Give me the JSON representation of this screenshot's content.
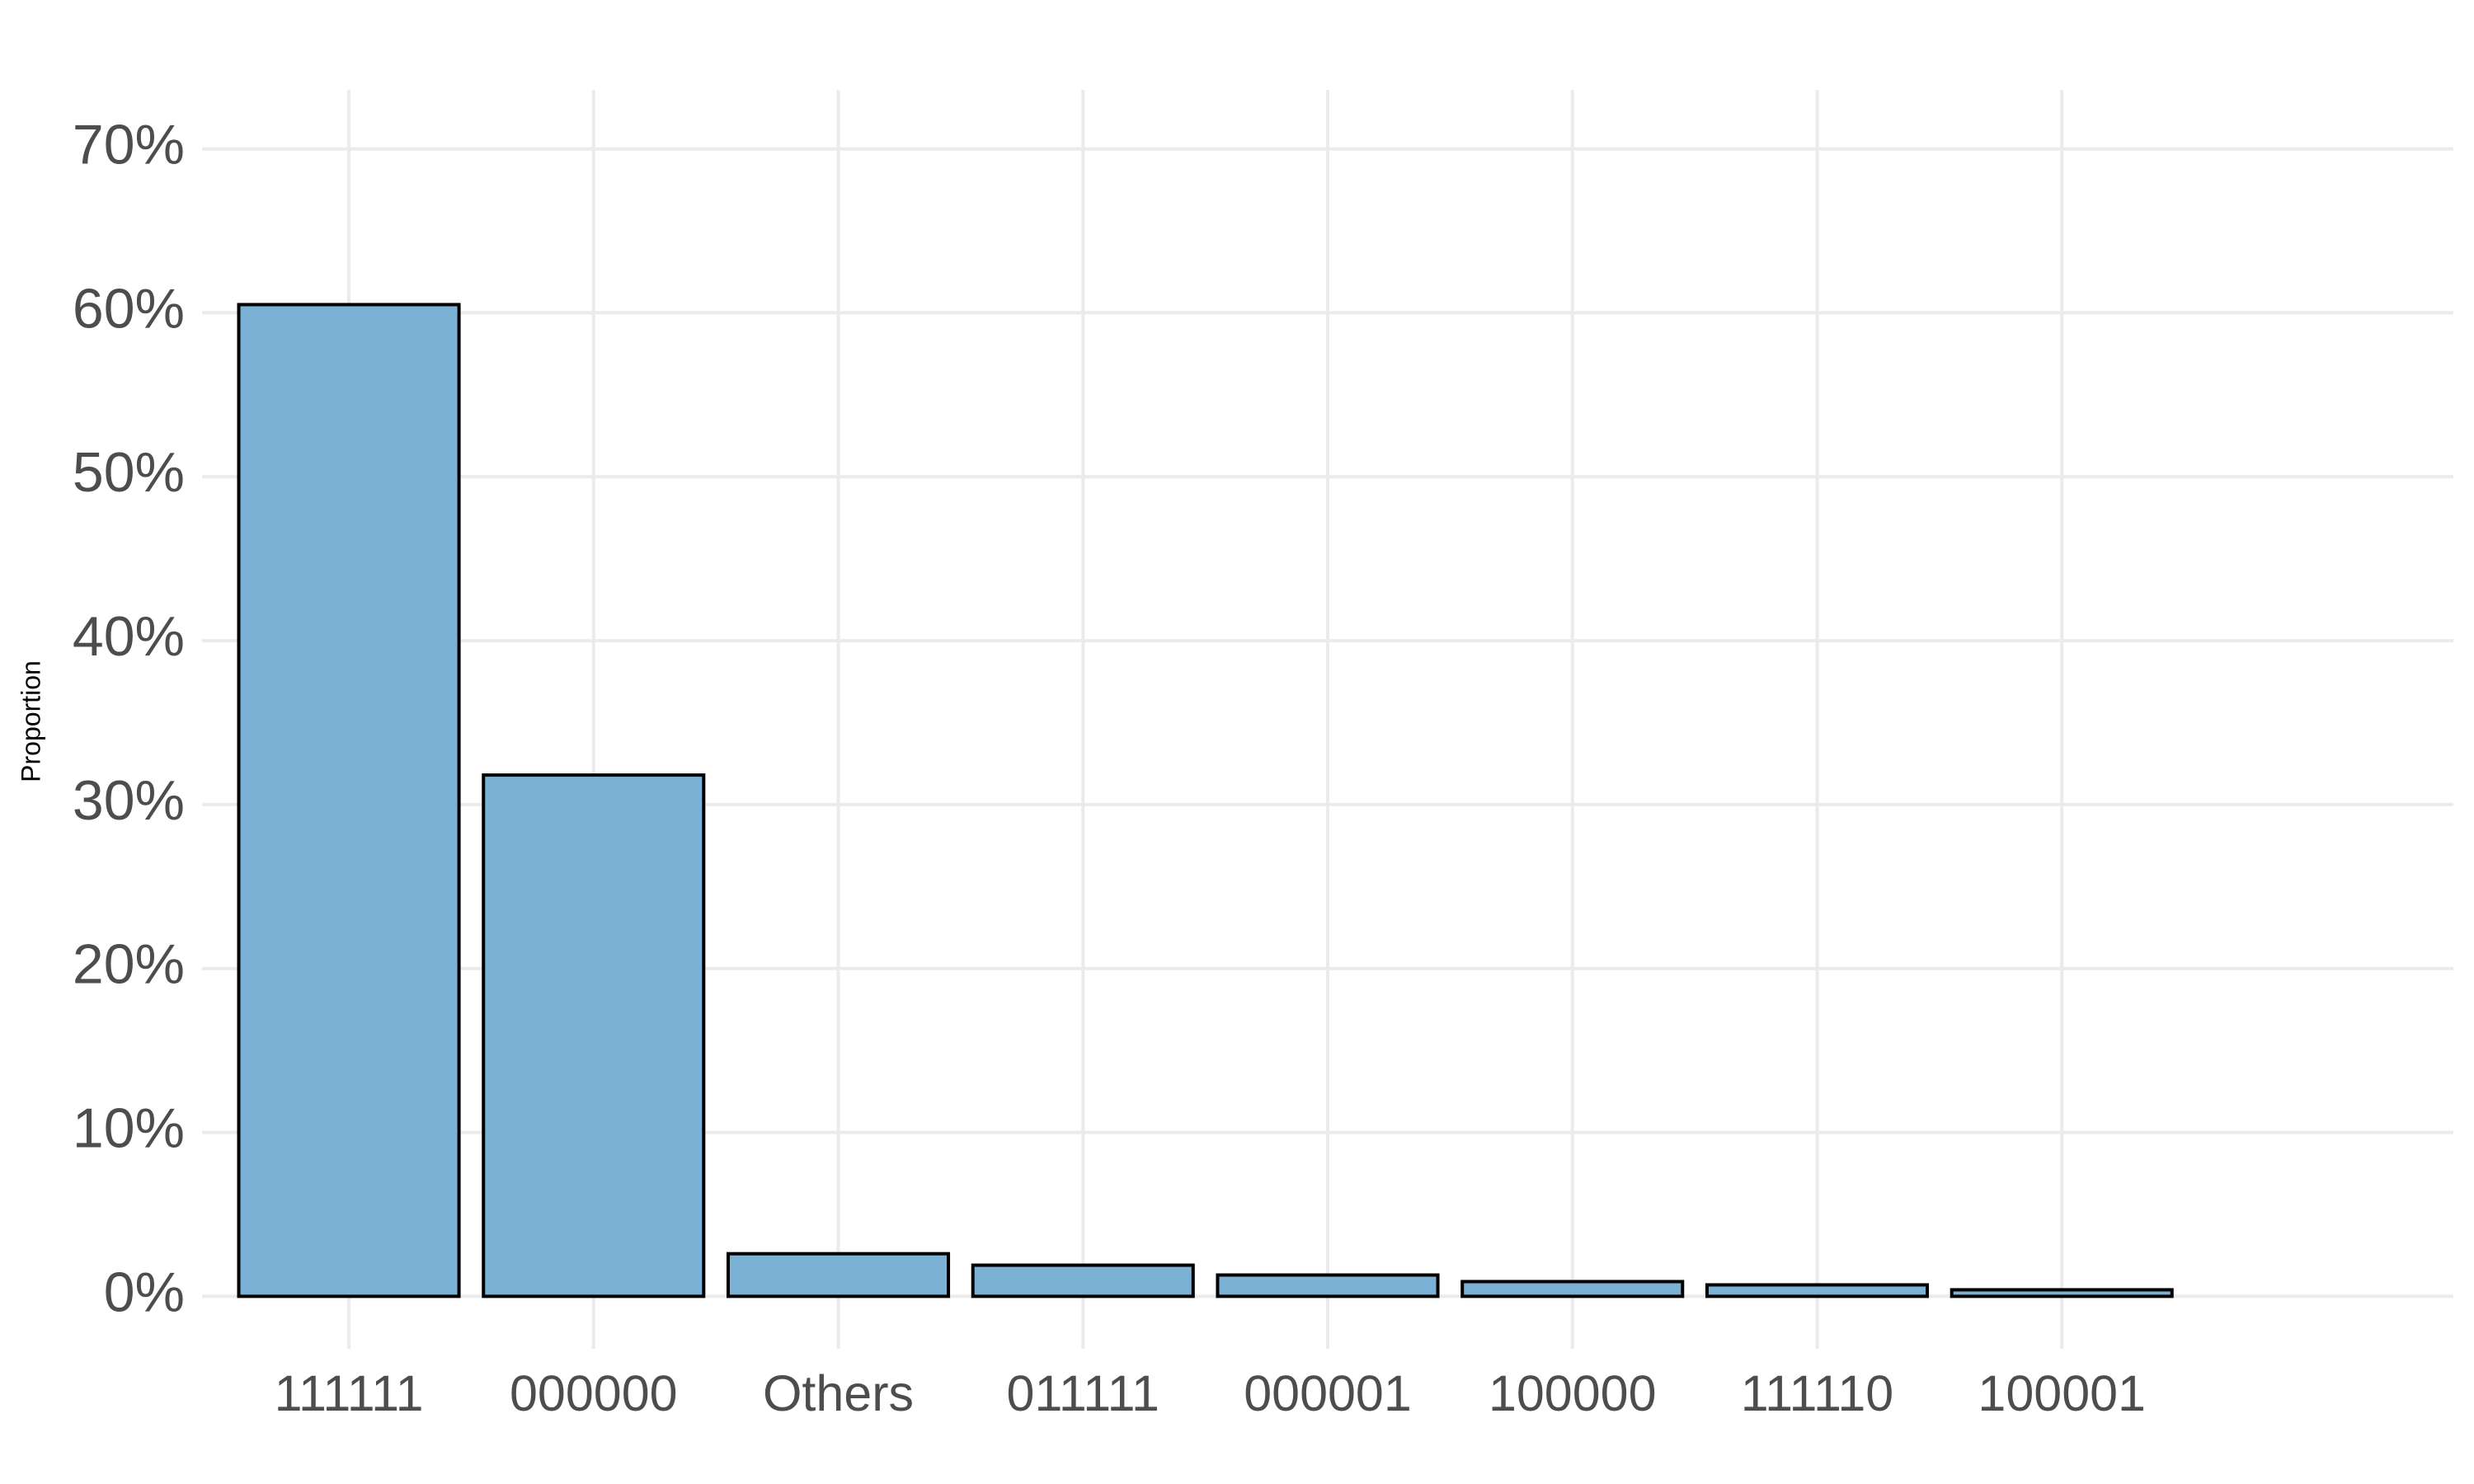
{
  "chart_data": {
    "type": "bar",
    "y_label": "Proportion",
    "categories": [
      "111111",
      "000000",
      "Others",
      "011111",
      "000001",
      "100000",
      "111110",
      "100001"
    ],
    "values": [
      60.5,
      31.8,
      2.6,
      1.9,
      1.3,
      0.9,
      0.7,
      0.4
    ],
    "color": "#7bb1d5",
    "edge_color": "#000000",
    "ylim": [
      -3.2,
      73.6
    ],
    "yticks": [
      {
        "value": 0,
        "label": "0%"
      },
      {
        "value": 10,
        "label": "10%"
      },
      {
        "value": 20,
        "label": "20%"
      },
      {
        "value": 30,
        "label": "30%"
      },
      {
        "value": 40,
        "label": "40%"
      },
      {
        "value": 50,
        "label": "50%"
      },
      {
        "value": 60,
        "label": "60%"
      },
      {
        "value": 70,
        "label": "70%"
      }
    ],
    "grid": true
  }
}
